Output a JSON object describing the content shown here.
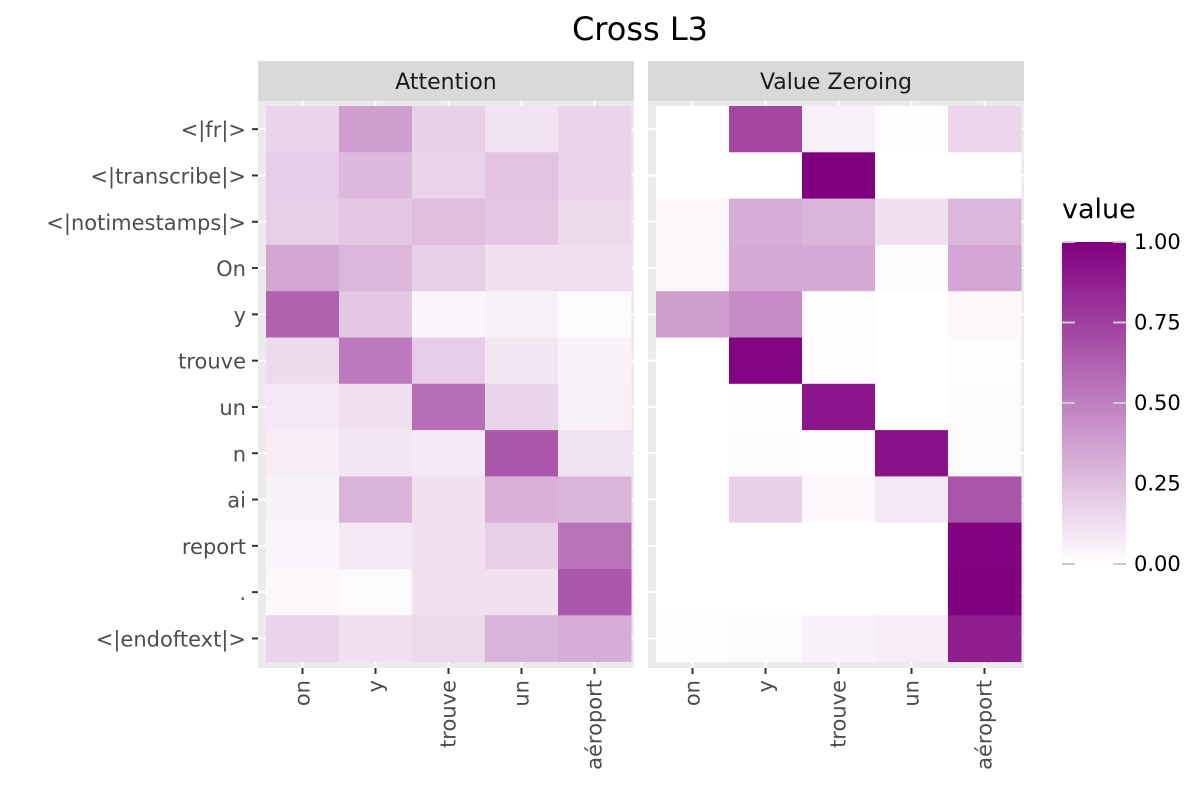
{
  "chart_data": {
    "type": "heatmap",
    "title": "Cross L3",
    "panels": [
      {
        "name": "Attention",
        "values": [
          [
            0.17,
            0.38,
            0.18,
            0.11,
            0.17
          ],
          [
            0.2,
            0.27,
            0.17,
            0.23,
            0.17
          ],
          [
            0.19,
            0.22,
            0.26,
            0.22,
            0.15
          ],
          [
            0.35,
            0.28,
            0.19,
            0.12,
            0.13
          ],
          [
            0.62,
            0.22,
            0.04,
            0.06,
            0.02
          ],
          [
            0.14,
            0.52,
            0.2,
            0.1,
            0.05
          ],
          [
            0.09,
            0.12,
            0.57,
            0.17,
            0.06
          ],
          [
            0.07,
            0.1,
            0.09,
            0.66,
            0.11
          ],
          [
            0.05,
            0.3,
            0.12,
            0.31,
            0.29
          ],
          [
            0.04,
            0.09,
            0.12,
            0.19,
            0.55
          ],
          [
            0.03,
            0.02,
            0.12,
            0.12,
            0.66
          ],
          [
            0.17,
            0.12,
            0.15,
            0.3,
            0.32
          ]
        ]
      },
      {
        "name": "Value Zeroing",
        "values": [
          [
            0.0,
            0.72,
            0.06,
            0.01,
            0.16
          ],
          [
            0.0,
            0.0,
            1.0,
            0.0,
            0.0
          ],
          [
            0.03,
            0.32,
            0.29,
            0.12,
            0.28
          ],
          [
            0.03,
            0.33,
            0.33,
            0.02,
            0.35
          ],
          [
            0.38,
            0.45,
            0.01,
            0.0,
            0.03
          ],
          [
            0.0,
            0.98,
            0.01,
            0.0,
            0.01
          ],
          [
            0.0,
            0.01,
            0.92,
            0.0,
            0.02
          ],
          [
            0.0,
            0.02,
            0.01,
            0.93,
            0.02
          ],
          [
            0.0,
            0.18,
            0.03,
            0.09,
            0.67
          ],
          [
            0.0,
            0.0,
            0.0,
            0.0,
            0.99
          ],
          [
            0.0,
            0.0,
            0.0,
            0.0,
            1.0
          ],
          [
            0.01,
            0.02,
            0.05,
            0.07,
            0.88
          ]
        ]
      }
    ],
    "y_categories": [
      "<|fr|>",
      "<|transcribe|>",
      "<|notimestamps|>",
      "On",
      "y",
      "trouve",
      "un",
      "n",
      "ai",
      "report",
      ".",
      "<|endoftext|>"
    ],
    "x_categories": [
      "on",
      "y",
      "trouve",
      "un",
      "aéroport"
    ],
    "xlabel": "",
    "ylabel": "",
    "legend": {
      "title": "value",
      "placement": "right",
      "range": [
        0,
        1
      ],
      "ticks": [
        "0.00",
        "0.25",
        "0.50",
        "0.75",
        "1.00"
      ]
    },
    "colors": {
      "low": "#ffffff",
      "high": "#800080",
      "panel_bg": "#ebebeb",
      "strip_bg": "#d9d9d9"
    },
    "grid": true
  }
}
